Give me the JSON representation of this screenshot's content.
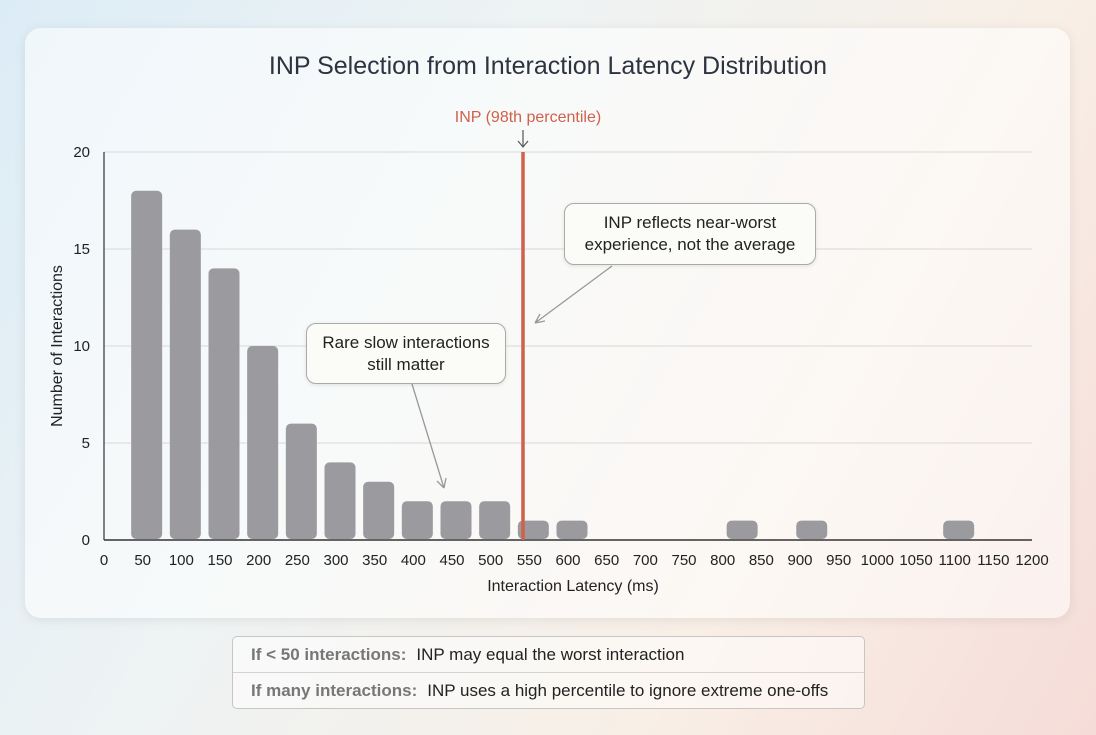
{
  "chart_data": {
    "type": "bar",
    "title": "INP Selection from Interaction Latency Distribution",
    "xlabel": "Interaction Latency (ms)",
    "ylabel": "Number of Interactions",
    "xlim": [
      0,
      1200
    ],
    "ylim": [
      0,
      20
    ],
    "xticks": [
      0,
      50,
      100,
      150,
      200,
      250,
      300,
      350,
      400,
      450,
      500,
      550,
      600,
      650,
      700,
      750,
      800,
      850,
      900,
      950,
      1000,
      1050,
      1100,
      1150,
      1200
    ],
    "yticks": [
      0,
      5,
      10,
      15,
      20
    ],
    "grid": "horizontal",
    "bar_color": "#9b9b9f",
    "x": [
      50,
      100,
      150,
      200,
      250,
      300,
      350,
      400,
      450,
      500,
      550,
      600,
      820,
      910,
      1100
    ],
    "values": [
      18,
      16,
      14,
      10,
      6,
      4,
      3,
      2,
      2,
      2,
      1,
      1,
      1,
      1,
      1
    ],
    "marker": {
      "label": "INP (98th percentile)",
      "x": 545,
      "color": "#d0614a"
    },
    "annotations": [
      {
        "text": "INP reflects near-worst experience, not the average",
        "line1": "INP reflects near-worst",
        "line2": "experience, not the average"
      },
      {
        "text": "Rare slow interactions still matter",
        "line1": "Rare slow interactions",
        "line2": "still matter"
      }
    ]
  },
  "legend": {
    "rows": [
      {
        "label": "If < 50 interactions:",
        "text": "INP may equal the worst interaction"
      },
      {
        "label": "If many interactions:",
        "text": "INP uses a high percentile to ignore extreme one-offs"
      }
    ]
  }
}
